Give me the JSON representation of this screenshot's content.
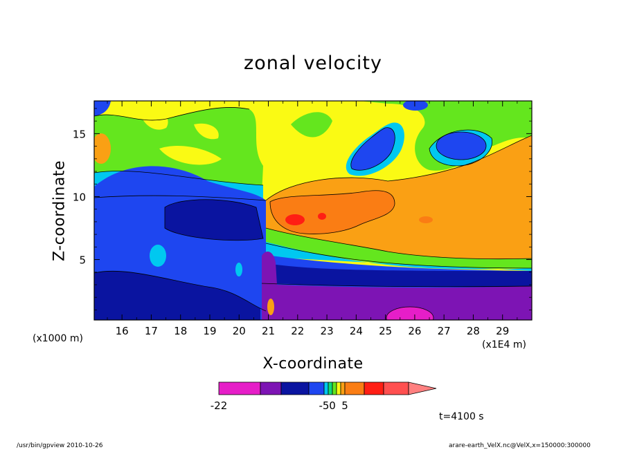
{
  "chart_data": {
    "type": "heatmap",
    "title": "zonal velocity",
    "xlabel": "X-coordinate",
    "ylabel": "Z-coordinate",
    "x_unit_note": "(x1E4 m)",
    "y_unit_note": "(x1000 m)",
    "xlim": [
      15.05,
      30.0
    ],
    "ylim": [
      0.2,
      17.6
    ],
    "x_ticks": [
      "16",
      "17",
      "18",
      "19",
      "20",
      "21",
      "22",
      "23",
      "24",
      "25",
      "26",
      "27",
      "28",
      "29"
    ],
    "y_ticks": [
      "5",
      "10",
      "15"
    ],
    "colorbar": {
      "labels": [
        "-22",
        "-5",
        "0",
        "5"
      ],
      "levels": [
        -22,
        -14,
        -10,
        -5,
        -2,
        -1,
        0,
        1,
        2,
        5,
        10,
        15,
        20
      ],
      "colors": [
        "#e61ec8",
        "#7d14b4",
        "#0a14a0",
        "#1e46f0",
        "#00c8f0",
        "#10dc78",
        "#64e61e",
        "#fafa14",
        "#faa014",
        "#fa7d14",
        "#ff1e14",
        "#ff5050"
      ]
    },
    "time_label": "t=4100 s"
  },
  "footer": {
    "left": "/usr/bin/gpview   2010-10-26",
    "right": "arare-earth_VelX.nc@VelX,x=150000:300000"
  }
}
